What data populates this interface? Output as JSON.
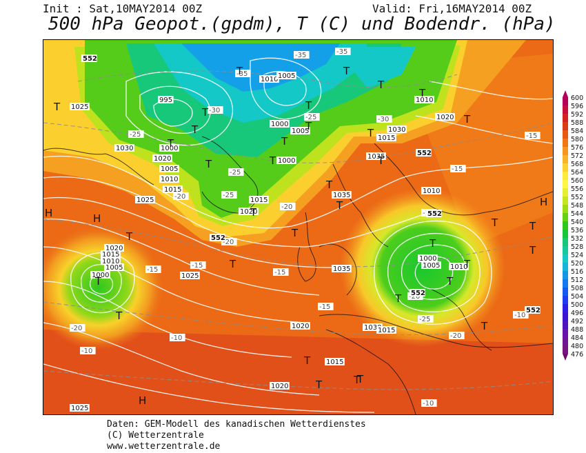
{
  "header": {
    "init": "Init : Sat,10MAY2014 00Z",
    "valid": "Valid: Fri,16MAY2014 00Z",
    "title": "500 hPa Geopot.(gpdm), T (C) und Bodendr. (hPa)"
  },
  "legend": {
    "values": [
      "600",
      "596",
      "592",
      "588",
      "584",
      "580",
      "576",
      "572",
      "568",
      "564",
      "560",
      "556",
      "552",
      "548",
      "544",
      "540",
      "536",
      "532",
      "528",
      "524",
      "520",
      "516",
      "512",
      "508",
      "504",
      "500",
      "496",
      "492",
      "488",
      "484",
      "480",
      "476"
    ],
    "colors": [
      "#b4005a",
      "#c80f3c",
      "#d2231e",
      "#dc3c14",
      "#e65a14",
      "#f07814",
      "#f5961e",
      "#f8b428",
      "#fcd232",
      "#ffeb3c",
      "#fff546",
      "#e6f032",
      "#c3e61e",
      "#9bdc14",
      "#64d214",
      "#2dc81e",
      "#14c83c",
      "#14c878",
      "#14c8a0",
      "#14c8c8",
      "#14b4dc",
      "#1496e6",
      "#1478f0",
      "#145af0",
      "#1e3cf0",
      "#2d1ee6",
      "#3c14d2",
      "#5014be",
      "#6414aa",
      "#701496",
      "#781482",
      "#6e0a6e"
    ]
  },
  "map": {
    "pressure_labels": [
      "1025",
      "1030",
      "1015",
      "1020",
      "1010",
      "1005",
      "1000",
      "995",
      "1035",
      "1020",
      "1015",
      "1010",
      "1005",
      "1000",
      "1025",
      "1030",
      "1035",
      "1020",
      "1015",
      "1010",
      "1005",
      "1000",
      "1025",
      "1030",
      "1035",
      "1020",
      "1015",
      "1010",
      "1020",
      "1015",
      "1010",
      "1005",
      "1000",
      "1025",
      "1020",
      "1015",
      "1010",
      "1005",
      "1000"
    ],
    "temp_labels": [
      "-35",
      "-35",
      "-35",
      "-30",
      "-25",
      "-25",
      "-25",
      "-20",
      "-20",
      "-15",
      "-15",
      "-10",
      "-10",
      "-30",
      "-25",
      "-20",
      "-15",
      "-15",
      "-10",
      "-10",
      "-20",
      "-25",
      "-20",
      "-15",
      "-15",
      "-10",
      "-20"
    ],
    "height_labels": [
      "552",
      "552",
      "552",
      "552",
      "552",
      "552"
    ],
    "low_symbol": "T",
    "high_symbol": "H",
    "low_positions_count": 36,
    "high_positions_count": 4
  },
  "footer": {
    "line1": "Daten: GEM-Modell des kanadischen Wetterdienstes",
    "line2": "(C) Wetterzentrale",
    "line3": "www.wetterzentrale.de"
  }
}
